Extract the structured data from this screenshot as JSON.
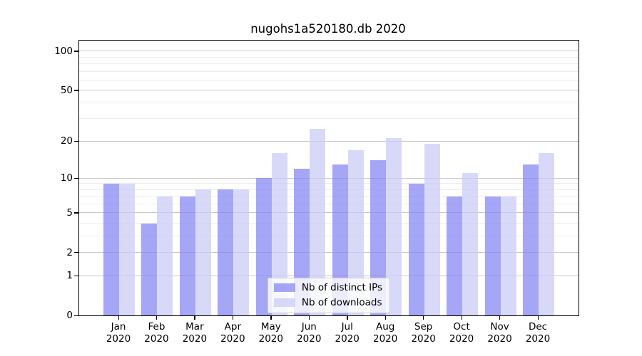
{
  "title": "nugohs1a520180.db 2020",
  "chart_data": {
    "type": "bar",
    "scale": "log1p",
    "title": "nugohs1a520180.db 2020",
    "xlabel": "",
    "ylabel": "",
    "year": "2020",
    "categories": [
      "Jan",
      "Feb",
      "Mar",
      "Apr",
      "May",
      "Jun",
      "Jul",
      "Aug",
      "Sep",
      "Oct",
      "Nov",
      "Dec"
    ],
    "series": [
      {
        "name": "Nb of distinct IPs",
        "color": "#8383f4",
        "values": [
          9,
          4,
          7,
          8,
          10,
          12,
          13,
          14,
          9,
          7,
          7,
          13
        ]
      },
      {
        "name": "Nb of downloads",
        "color": "#c9cbf6",
        "values": [
          9,
          7,
          8,
          8,
          16,
          25,
          17,
          21,
          19,
          11,
          7,
          16
        ]
      }
    ],
    "bar_opacity": 0.72,
    "ylim": [
      0,
      120.6
    ],
    "yticks": [
      100,
      50,
      20,
      10,
      5,
      2,
      1,
      0
    ],
    "minor_gridlines": [
      3,
      4,
      6,
      7,
      8,
      9,
      30,
      40,
      60,
      70,
      80,
      90
    ],
    "major_grid_color": "#c9c9c9",
    "minor_grid_color": "#ededed",
    "grid": true,
    "legend_position": "lower center"
  }
}
